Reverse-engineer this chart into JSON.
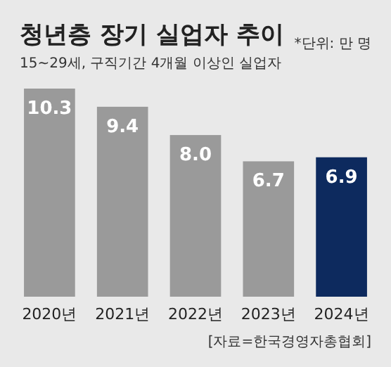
{
  "chart_data": {
    "type": "bar",
    "title": "청년층 장기 실업자 추이",
    "subtitle": "15~29세, 구직기간 4개월 이상인 실업자",
    "annotations": [
      "*단위: 만 명",
      "[자료=한국경영자총협회]"
    ],
    "categories": [
      "2020년",
      "2021년",
      "2022년",
      "2023년",
      "2024년"
    ],
    "values": [
      10.3,
      9.4,
      8.0,
      6.7,
      6.9
    ],
    "colors": [
      "#9a9a9a",
      "#9a9a9a",
      "#9a9a9a",
      "#9a9a9a",
      "#0d2a5e"
    ],
    "value_labels": [
      "10.3",
      "9.4",
      "8.0",
      "6.7",
      "6.9"
    ]
  }
}
